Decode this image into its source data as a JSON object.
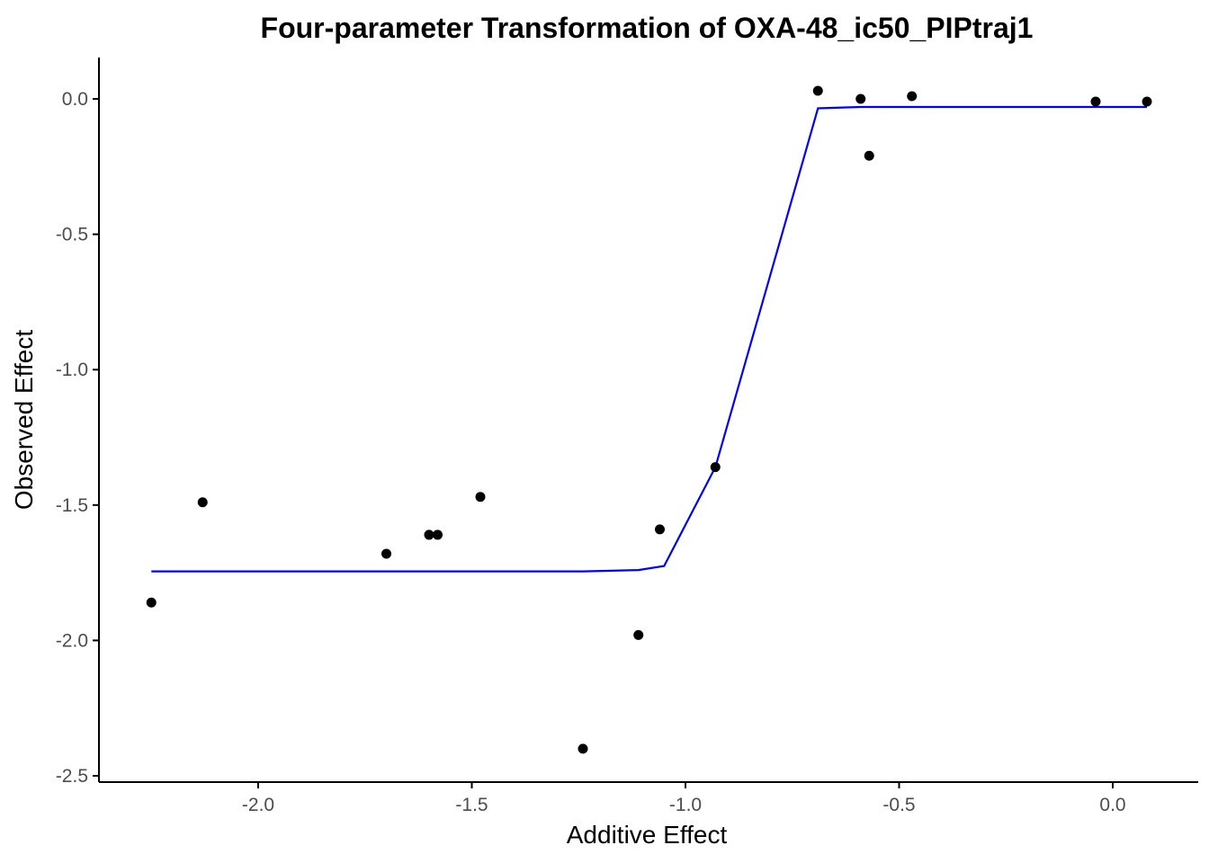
{
  "chart_data": {
    "type": "scatter",
    "title": "Four-parameter Transformation of OXA-48_ic50_PIPtraj1",
    "xlabel": "Additive Effect",
    "ylabel": "Observed Effect",
    "xlim": [
      -2.4,
      0.38
    ],
    "ylim": [
      -2.52,
      0.15
    ],
    "x_ticks": [
      -2.0,
      -1.5,
      -1.0,
      -0.5,
      0.0
    ],
    "x_tick_labels": [
      "-2.0",
      "-1.5",
      "-1.0",
      "-0.5",
      "0.0"
    ],
    "y_ticks": [
      0.0,
      -0.5,
      -1.0,
      -1.5,
      -2.0,
      -2.5
    ],
    "y_tick_labels": [
      "0.0",
      "-0.5",
      "-1.0",
      "-1.5",
      "-2.0",
      "-2.5"
    ],
    "grid": false,
    "colors": {
      "points": "#000000",
      "fit_line": "#0000ff",
      "axis": "#000000"
    },
    "series": [
      {
        "kind": "points",
        "x": [
          -2.25,
          -2.13,
          -1.7,
          -1.6,
          -1.58,
          -1.48,
          -1.24,
          -1.11,
          -1.06,
          -0.93,
          -0.69,
          -0.59,
          -0.57,
          -0.47,
          -0.04,
          0.08
        ],
        "y": [
          -1.86,
          -1.49,
          -1.68,
          -1.61,
          -1.61,
          -1.47,
          -2.4,
          -1.98,
          -1.59,
          -1.36,
          0.03,
          0.0,
          -0.21,
          0.01,
          -0.01,
          -0.01
        ]
      },
      {
        "kind": "line",
        "x": [
          -2.25,
          -1.24,
          -1.11,
          -1.05,
          -0.93,
          -0.69,
          -0.59,
          0.08
        ],
        "y": [
          -1.745,
          -1.745,
          -1.74,
          -1.725,
          -1.36,
          -0.035,
          -0.03,
          -0.03
        ]
      }
    ]
  }
}
